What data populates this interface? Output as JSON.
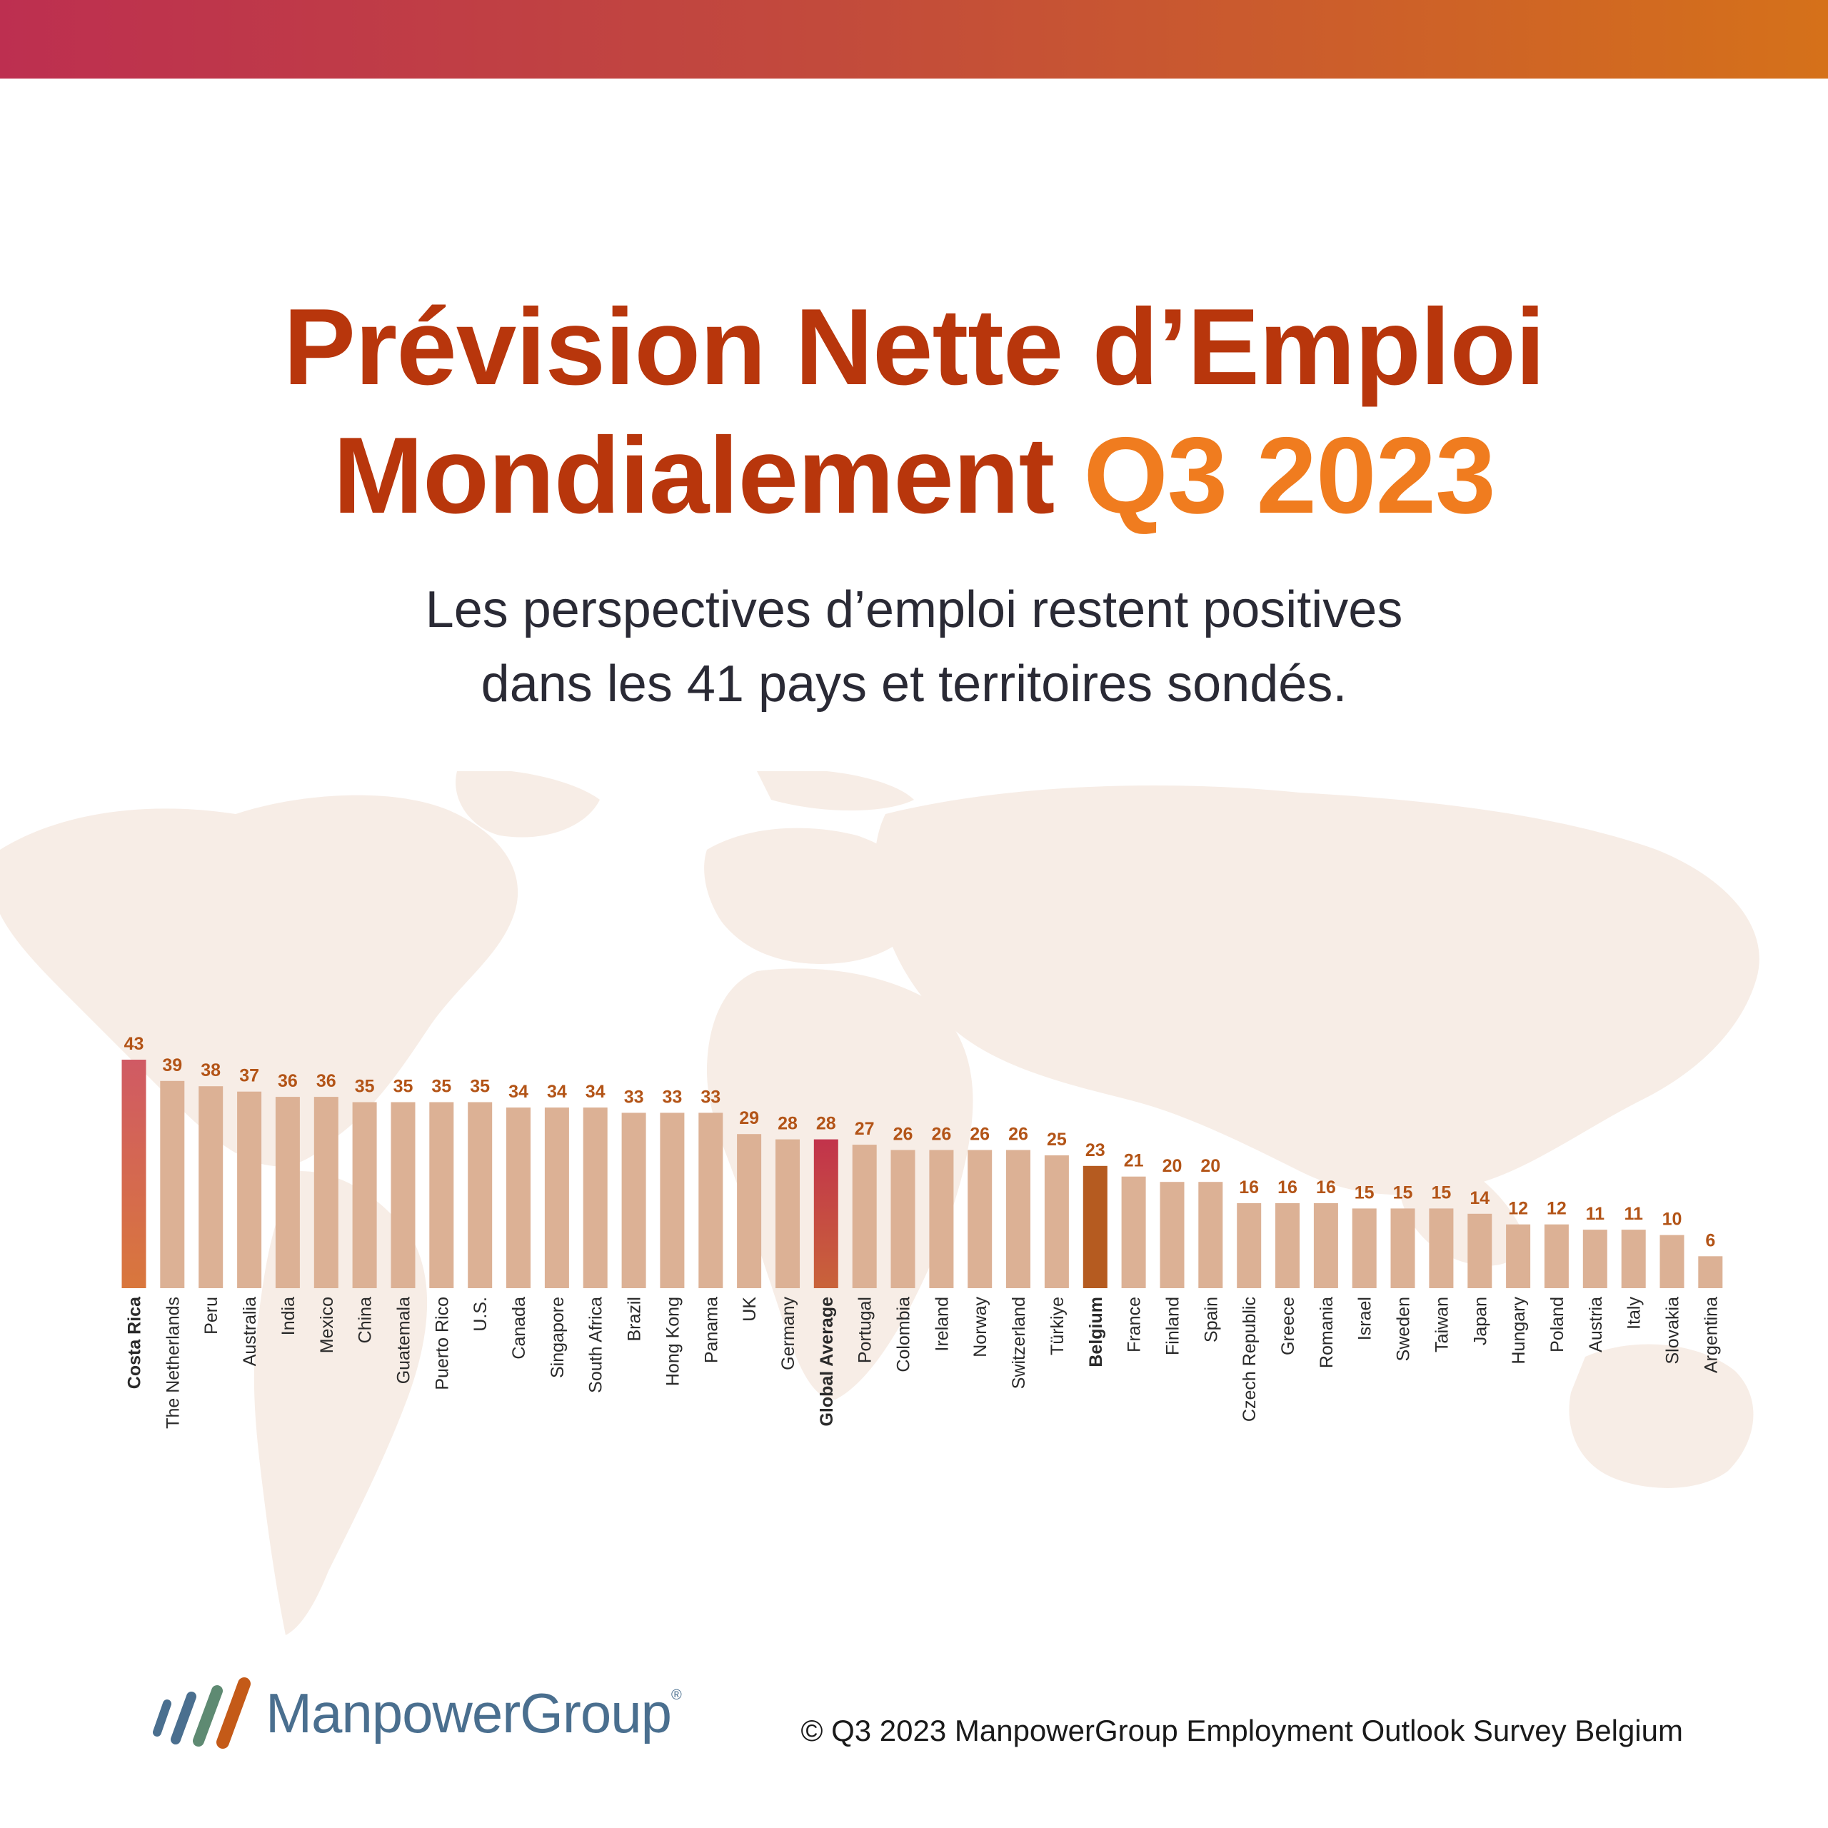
{
  "header": {
    "title_line1": "Prévision Nette d’Emploi",
    "title_line2_part1": "Mondialement",
    "title_line2_accent": "Q3 2023",
    "subtitle_line1": "Les perspectives d’emploi restent positives",
    "subtitle_line2": "dans les 41 pays et territoires sondés."
  },
  "colors": {
    "default_bar": "#dcb195",
    "top_bar_gradient": [
      "#d05a64",
      "#d9773c"
    ],
    "global_bar_gradient": [
      "#c2334b",
      "#c9633a"
    ],
    "belgium_bar": "#b55b20",
    "value_label": "#b35417",
    "title": "#b8360c",
    "title_accent": "#f07c1f"
  },
  "chart_data": {
    "type": "bar",
    "categories": [
      "Costa Rica",
      "The Netherlands",
      "Peru",
      "Australia",
      "India",
      "Mexico",
      "China",
      "Guatemala",
      "Puerto Rico",
      "U.S.",
      "Canada",
      "Singapore",
      "South Africa",
      "Brazil",
      "Hong Kong",
      "Panama",
      "UK",
      "Germany",
      "Global Average",
      "Portugal",
      "Colombia",
      "Ireland",
      "Norway",
      "Switzerland",
      "Türkiye",
      "Belgium",
      "France",
      "Finland",
      "Spain",
      "Czech Republic",
      "Greece",
      "Romania",
      "Israel",
      "Sweden",
      "Taiwan",
      "Japan",
      "Hungary",
      "Poland",
      "Austria",
      "Italy",
      "Slovakia",
      "Argentina"
    ],
    "values": [
      43,
      39,
      38,
      37,
      36,
      36,
      35,
      35,
      35,
      35,
      34,
      34,
      34,
      33,
      33,
      33,
      29,
      28,
      28,
      27,
      26,
      26,
      26,
      26,
      25,
      23,
      21,
      20,
      20,
      16,
      16,
      16,
      15,
      15,
      15,
      14,
      12,
      12,
      11,
      11,
      10,
      6
    ],
    "highlighted": [
      "Costa Rica",
      "Global Average",
      "Belgium"
    ],
    "ylim": [
      0,
      43
    ],
    "data_labels": true,
    "legend": "none",
    "grid": false
  },
  "footer": {
    "logo_text": "ManpowerGroup",
    "logo_mark": "®",
    "copyright": "© Q3 2023 ManpowerGroup Employment Outlook Survey Belgium"
  }
}
